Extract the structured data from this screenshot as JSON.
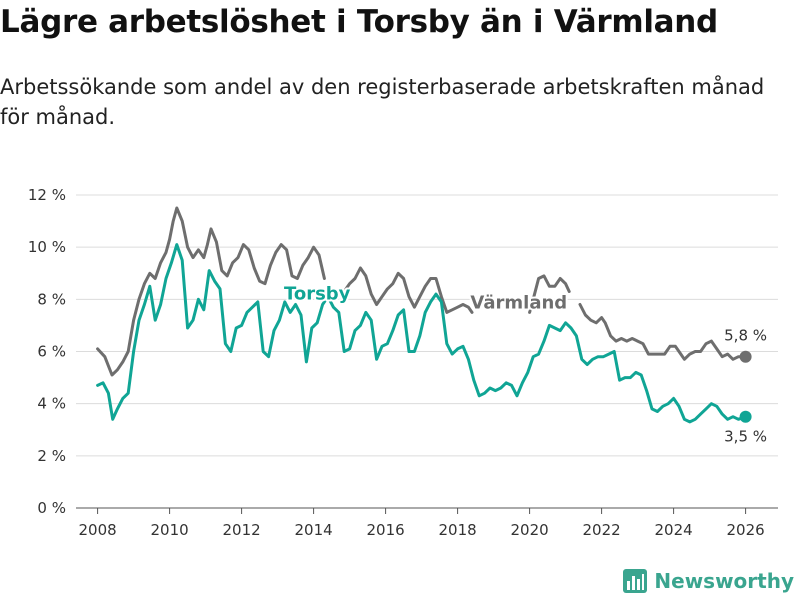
{
  "header": {
    "title": "Lägre arbetslöshet i Torsby än i Värmland",
    "subtitle": "Arbetssökande som andel av den registerbaserade arbetskraften månad för månad."
  },
  "brand": {
    "name": "Newsworthy"
  },
  "colors": {
    "torsby": "#10a595",
    "varmland": "#6e6e6e",
    "grid": "#dcdcdc",
    "brand": "#3aa58f"
  },
  "chart_data": {
    "type": "line",
    "title": "Lägre arbetslöshet i Torsby än i Värmland",
    "xlabel": "",
    "ylabel": "",
    "ylim": [
      0,
      12
    ],
    "xlim": [
      2007.4,
      2026.9
    ],
    "y_ticks": [
      0,
      2,
      4,
      6,
      8,
      10,
      12
    ],
    "y_tick_labels": [
      "0 %",
      "2 %",
      "4 %",
      "6 %",
      "8 %",
      "10 %",
      "12 %"
    ],
    "x_ticks": [
      2008,
      2010,
      2012,
      2014,
      2016,
      2018,
      2020,
      2022,
      2024,
      2026
    ],
    "x_tick_labels": [
      "2008",
      "2010",
      "2012",
      "2014",
      "2016",
      "2018",
      "2020",
      "2022",
      "2024",
      "2026"
    ],
    "grid": true,
    "series": [
      {
        "name": "Värmland",
        "label": "Värmland",
        "end_label": "5,8 %",
        "last_value": 5.8,
        "points": [
          [
            2008.0,
            6.1
          ],
          [
            2008.2,
            5.8
          ],
          [
            2008.4,
            5.1
          ],
          [
            2008.55,
            5.3
          ],
          [
            2008.7,
            5.6
          ],
          [
            2008.85,
            6.0
          ],
          [
            2009.0,
            7.2
          ],
          [
            2009.15,
            8.0
          ],
          [
            2009.3,
            8.6
          ],
          [
            2009.45,
            9.0
          ],
          [
            2009.6,
            8.8
          ],
          [
            2009.75,
            9.4
          ],
          [
            2009.9,
            9.8
          ],
          [
            2010.0,
            10.3
          ],
          [
            2010.1,
            11.0
          ],
          [
            2010.2,
            11.5
          ],
          [
            2010.35,
            11.0
          ],
          [
            2010.5,
            10.0
          ],
          [
            2010.65,
            9.6
          ],
          [
            2010.8,
            9.9
          ],
          [
            2010.95,
            9.6
          ],
          [
            2011.05,
            10.1
          ],
          [
            2011.15,
            10.7
          ],
          [
            2011.3,
            10.2
          ],
          [
            2011.45,
            9.1
          ],
          [
            2011.6,
            8.9
          ],
          [
            2011.75,
            9.4
          ],
          [
            2011.9,
            9.6
          ],
          [
            2012.05,
            10.1
          ],
          [
            2012.2,
            9.9
          ],
          [
            2012.35,
            9.2
          ],
          [
            2012.5,
            8.7
          ],
          [
            2012.65,
            8.6
          ],
          [
            2012.8,
            9.3
          ],
          [
            2012.95,
            9.8
          ],
          [
            2013.1,
            10.1
          ],
          [
            2013.25,
            9.9
          ],
          [
            2013.4,
            8.9
          ],
          [
            2013.55,
            8.8
          ],
          [
            2013.7,
            9.3
          ],
          [
            2013.85,
            9.6
          ],
          [
            2014.0,
            10.0
          ],
          [
            2014.15,
            9.7
          ],
          [
            2014.3,
            8.8
          ]
        ],
        "segments": [
          [
            [
              2014.9,
              8.4
            ],
            [
              2015.0,
              8.6
            ],
            [
              2015.15,
              8.8
            ],
            [
              2015.3,
              9.2
            ],
            [
              2015.45,
              8.9
            ],
            [
              2015.6,
              8.2
            ],
            [
              2015.75,
              7.8
            ],
            [
              2015.9,
              8.1
            ],
            [
              2016.05,
              8.4
            ],
            [
              2016.2,
              8.6
            ],
            [
              2016.35,
              9.0
            ],
            [
              2016.5,
              8.8
            ],
            [
              2016.65,
              8.1
            ],
            [
              2016.8,
              7.7
            ],
            [
              2016.95,
              8.1
            ],
            [
              2017.1,
              8.5
            ],
            [
              2017.25,
              8.8
            ],
            [
              2017.4,
              8.8
            ],
            [
              2017.55,
              8.1
            ],
            [
              2017.7,
              7.5
            ],
            [
              2017.85,
              7.6
            ],
            [
              2018.0,
              7.7
            ],
            [
              2018.15,
              7.8
            ],
            [
              2018.3,
              7.7
            ],
            [
              2018.4,
              7.5
            ]
          ],
          [
            [
              2020.0,
              7.5
            ],
            [
              2020.1,
              8.0
            ],
            [
              2020.25,
              8.8
            ],
            [
              2020.4,
              8.9
            ],
            [
              2020.55,
              8.5
            ],
            [
              2020.7,
              8.5
            ],
            [
              2020.85,
              8.8
            ],
            [
              2021.0,
              8.6
            ],
            [
              2021.1,
              8.3
            ]
          ],
          [
            [
              2021.4,
              7.8
            ],
            [
              2021.55,
              7.4
            ],
            [
              2021.7,
              7.2
            ],
            [
              2021.85,
              7.1
            ],
            [
              2022.0,
              7.3
            ],
            [
              2022.1,
              7.1
            ],
            [
              2022.25,
              6.6
            ],
            [
              2022.4,
              6.4
            ],
            [
              2022.55,
              6.5
            ],
            [
              2022.7,
              6.4
            ],
            [
              2022.85,
              6.5
            ],
            [
              2023.0,
              6.4
            ],
            [
              2023.15,
              6.3
            ],
            [
              2023.3,
              5.9
            ],
            [
              2023.45,
              5.9
            ],
            [
              2023.6,
              5.9
            ],
            [
              2023.75,
              5.9
            ],
            [
              2023.9,
              6.2
            ],
            [
              2024.05,
              6.2
            ],
            [
              2024.15,
              6.0
            ],
            [
              2024.3,
              5.7
            ],
            [
              2024.45,
              5.9
            ],
            [
              2024.6,
              6.0
            ],
            [
              2024.75,
              6.0
            ],
            [
              2024.9,
              6.3
            ],
            [
              2025.05,
              6.4
            ],
            [
              2025.2,
              6.1
            ],
            [
              2025.35,
              5.8
            ],
            [
              2025.5,
              5.9
            ],
            [
              2025.65,
              5.7
            ],
            [
              2025.8,
              5.8
            ],
            [
              2026.0,
              5.8
            ]
          ]
        ]
      },
      {
        "name": "Torsby",
        "label": "Torsby",
        "end_label": "3,5 %",
        "last_value": 3.5,
        "points": [
          [
            2008.0,
            4.7
          ],
          [
            2008.15,
            4.8
          ],
          [
            2008.3,
            4.4
          ],
          [
            2008.42,
            3.4
          ],
          [
            2008.55,
            3.8
          ],
          [
            2008.7,
            4.2
          ],
          [
            2008.85,
            4.4
          ],
          [
            2009.0,
            6.0
          ],
          [
            2009.15,
            7.2
          ],
          [
            2009.3,
            7.8
          ],
          [
            2009.45,
            8.5
          ],
          [
            2009.6,
            7.2
          ],
          [
            2009.75,
            7.8
          ],
          [
            2009.9,
            8.8
          ],
          [
            2010.05,
            9.4
          ],
          [
            2010.2,
            10.1
          ],
          [
            2010.35,
            9.5
          ],
          [
            2010.5,
            6.9
          ],
          [
            2010.65,
            7.2
          ],
          [
            2010.8,
            8.0
          ],
          [
            2010.95,
            7.6
          ],
          [
            2011.1,
            9.1
          ],
          [
            2011.25,
            8.7
          ],
          [
            2011.4,
            8.4
          ],
          [
            2011.55,
            6.3
          ],
          [
            2011.7,
            6.0
          ],
          [
            2011.85,
            6.9
          ],
          [
            2012.0,
            7.0
          ],
          [
            2012.15,
            7.5
          ],
          [
            2012.3,
            7.7
          ],
          [
            2012.45,
            7.9
          ],
          [
            2012.6,
            6.0
          ],
          [
            2012.75,
            5.8
          ],
          [
            2012.9,
            6.8
          ],
          [
            2013.05,
            7.2
          ],
          [
            2013.2,
            7.9
          ],
          [
            2013.35,
            7.5
          ],
          [
            2013.5,
            7.8
          ],
          [
            2013.65,
            7.4
          ],
          [
            2013.8,
            5.6
          ],
          [
            2013.95,
            6.9
          ],
          [
            2014.1,
            7.1
          ],
          [
            2014.25,
            7.8
          ],
          [
            2014.4,
            8.1
          ],
          [
            2014.55,
            7.7
          ],
          [
            2014.7,
            7.5
          ],
          [
            2014.85,
            6.0
          ],
          [
            2015.0,
            6.1
          ],
          [
            2015.15,
            6.8
          ],
          [
            2015.3,
            7.0
          ],
          [
            2015.45,
            7.5
          ],
          [
            2015.6,
            7.2
          ],
          [
            2015.75,
            5.7
          ],
          [
            2015.9,
            6.2
          ],
          [
            2016.05,
            6.3
          ],
          [
            2016.2,
            6.8
          ],
          [
            2016.35,
            7.4
          ],
          [
            2016.5,
            7.6
          ],
          [
            2016.65,
            6.0
          ],
          [
            2016.8,
            6.0
          ],
          [
            2016.95,
            6.6
          ],
          [
            2017.1,
            7.5
          ],
          [
            2017.25,
            7.9
          ],
          [
            2017.4,
            8.2
          ],
          [
            2017.55,
            7.9
          ],
          [
            2017.7,
            6.3
          ],
          [
            2017.85,
            5.9
          ],
          [
            2018.0,
            6.1
          ],
          [
            2018.15,
            6.2
          ],
          [
            2018.3,
            5.7
          ],
          [
            2018.45,
            4.9
          ],
          [
            2018.6,
            4.3
          ],
          [
            2018.75,
            4.4
          ],
          [
            2018.9,
            4.6
          ],
          [
            2019.05,
            4.5
          ],
          [
            2019.2,
            4.6
          ],
          [
            2019.35,
            4.8
          ],
          [
            2019.5,
            4.7
          ],
          [
            2019.65,
            4.3
          ],
          [
            2019.8,
            4.8
          ],
          [
            2019.95,
            5.2
          ],
          [
            2020.1,
            5.8
          ],
          [
            2020.25,
            5.9
          ],
          [
            2020.4,
            6.4
          ],
          [
            2020.55,
            7.0
          ],
          [
            2020.7,
            6.9
          ],
          [
            2020.85,
            6.8
          ],
          [
            2021.0,
            7.1
          ],
          [
            2021.15,
            6.9
          ],
          [
            2021.3,
            6.6
          ],
          [
            2021.45,
            5.7
          ],
          [
            2021.6,
            5.5
          ],
          [
            2021.75,
            5.7
          ],
          [
            2021.9,
            5.8
          ],
          [
            2022.05,
            5.8
          ],
          [
            2022.2,
            5.9
          ],
          [
            2022.35,
            6.0
          ],
          [
            2022.5,
            4.9
          ],
          [
            2022.65,
            5.0
          ],
          [
            2022.8,
            5.0
          ],
          [
            2022.95,
            5.2
          ],
          [
            2023.1,
            5.1
          ],
          [
            2023.25,
            4.5
          ],
          [
            2023.4,
            3.8
          ],
          [
            2023.55,
            3.7
          ],
          [
            2023.7,
            3.9
          ],
          [
            2023.85,
            4.0
          ],
          [
            2024.0,
            4.2
          ],
          [
            2024.15,
            3.9
          ],
          [
            2024.3,
            3.4
          ],
          [
            2024.45,
            3.3
          ],
          [
            2024.6,
            3.4
          ],
          [
            2024.75,
            3.6
          ],
          [
            2024.9,
            3.8
          ],
          [
            2025.05,
            4.0
          ],
          [
            2025.2,
            3.9
          ],
          [
            2025.35,
            3.6
          ],
          [
            2025.5,
            3.4
          ],
          [
            2025.65,
            3.5
          ],
          [
            2025.8,
            3.4
          ],
          [
            2026.0,
            3.5
          ]
        ]
      }
    ]
  }
}
